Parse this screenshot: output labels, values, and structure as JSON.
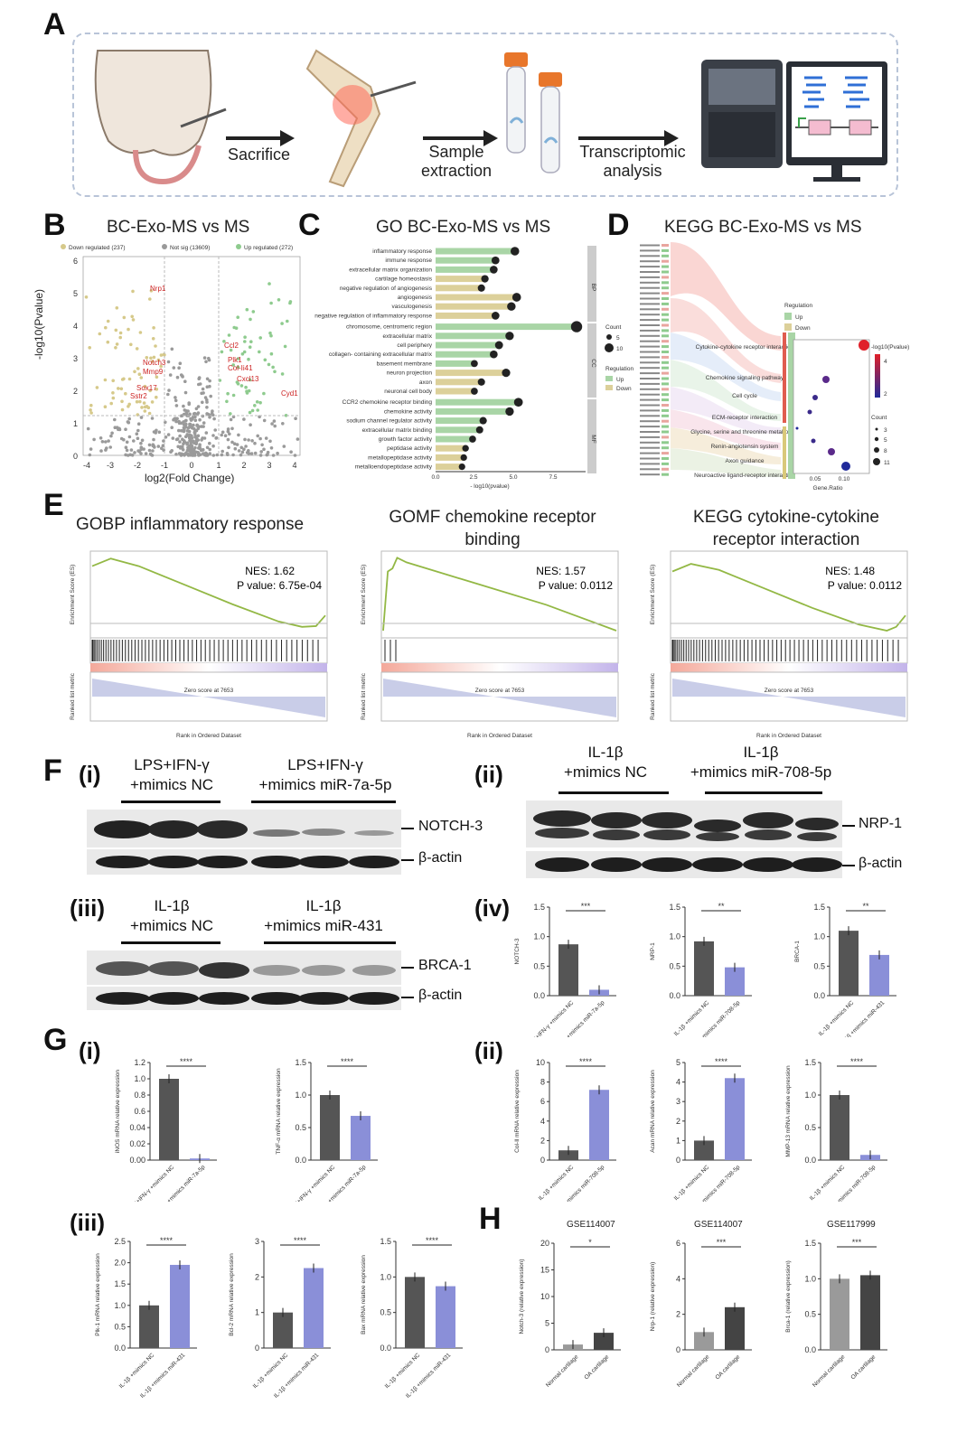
{
  "panels": {
    "A": "A",
    "B": "B",
    "C": "C",
    "D": "D",
    "E": "E",
    "F": "F",
    "G": "G",
    "H": "H"
  },
  "panelA": {
    "steps": [
      "Sacrifice",
      "Sample extraction",
      "Transcriptomic analysis"
    ],
    "colors": {
      "tube_cap": "#e8762b",
      "arrow": "#222222",
      "frame": "#b8c4d8"
    }
  },
  "panelB": {
    "title": "BC-Exo-MS vs MS",
    "legend": [
      "Down regulated (237)",
      "Not sig (13609)",
      "Up regulated (272)"
    ],
    "ylabel": "-log10(Pvalue)",
    "xlabel": "log2(Fold Change)",
    "genes_left": [
      "Nrp1",
      "Notch3",
      "Mmp9",
      "Sox17",
      "Sstr2"
    ],
    "genes_right": [
      "Ccl2",
      "Plk1",
      "Col-Ii41",
      "Cxcl13",
      "Cyd1"
    ],
    "colors": {
      "down": "#d6c98a",
      "ns": "#9a9a9a",
      "up": "#8ecb8e",
      "gene": "#cc2222"
    }
  },
  "panelC": {
    "title": "GO  BC-Exo-MS vs MS",
    "xlabel": "- log10(pvalue)",
    "terms": [
      "inflammatory response",
      "immune response",
      "extracellular matrix organization",
      "cartilage homeostasis",
      "negative regulation of angiogenesis",
      "angiogenesis",
      "vasculogenesis",
      "negative regulation of inflammatory response",
      "chromosome, centromeric region",
      "extracellular matrix",
      "cell periphery",
      "collagen- containing extracellular matrix",
      "basement membrane",
      "neuron projection",
      "axon",
      "neuronal cell body",
      "CCR2 chemokine receptor binding",
      "chemokine activity",
      "sodium channel regulator activity",
      "extracellular matrix binding",
      "growth factor activity",
      "peptidase activity",
      "metallopeptidase activity",
      "metalloendopeptidase activity"
    ],
    "groups": [
      "BP",
      "CC",
      "MF"
    ],
    "legend_count": "Count",
    "legend_reg": "Regulation",
    "reg_up": "Up",
    "reg_down": "Down",
    "count_ticks": [
      "5",
      "10"
    ]
  },
  "panelD": {
    "title": "KEGG  BC-Exo-MS vs MS",
    "pathways": [
      "Cytokine-cytokine receptor interaction",
      "Chemokine signaling pathway",
      "Cell cycle",
      "ECM-receptor interaction",
      "Glycine, serine and threonine metabolism",
      "Renin-angiotensin system",
      "Axon guidance",
      "Neuroactive ligand-receptor interaction"
    ],
    "legend_reg": "Regulation",
    "reg_up": "Up",
    "reg_down": "Down",
    "legend_p": "-log10(Pvalue)",
    "legend_count": "Count",
    "xlabel": "Gene.Ratio",
    "count_ticks": [
      "3",
      "5",
      "8",
      "11"
    ]
  },
  "panelE": {
    "plots": [
      {
        "title": "GOBP inflammatory response",
        "nes": "NES: 1.62",
        "p": "P value: 6.75e-04"
      },
      {
        "title": "GOMF chemokine receptor binding",
        "nes": "NES: 1.57",
        "p": "P value: 0.0112"
      },
      {
        "title": "KEGG cytokine-cytokine receptor interaction",
        "nes": "NES: 1.48",
        "p": "P value: 0.0112"
      }
    ],
    "ylabel": "Enrichment Score (ES)",
    "ylabel2": "Ranked list metric",
    "xlabel": "Rank in Ordered Dataset",
    "zero": "Zero score at 7653"
  },
  "panelF": {
    "i": {
      "tag": "(i)",
      "cond1": "LPS+IFN-γ\n+mimics NC",
      "cond2": "LPS+IFN-γ\n+mimics miR-7a-5p",
      "band1": "NOTCH-3",
      "band2": "β-actin"
    },
    "ii": {
      "tag": "(ii)",
      "cond1": "IL-1β\n+mimics NC",
      "cond2": "IL-1β\n+mimics miR-708-5p",
      "band1": "NRP-1",
      "band2": "β-actin"
    },
    "iii": {
      "tag": "(iii)",
      "cond1": "IL-1β\n+mimics NC",
      "cond2": "IL-1β\n+mimics miR-431",
      "band1": "BRCA-1",
      "band2": "β-actin"
    },
    "iv": {
      "tag": "(iv)"
    }
  },
  "panelG": {
    "i": "(i)",
    "ii": "(ii)",
    "iii": "(iii)"
  },
  "panelH": {
    "titles": [
      "GSE114007",
      "GSE114007",
      "GSE117999"
    ]
  },
  "chart_data": [
    {
      "type": "bar",
      "id": "F-iv-notch3",
      "ylabel": "NOTCH-3",
      "categories": [
        "LPS+IFN-γ +mimics NC",
        "LPS+IFN-γ +mimics miR-7a-5p"
      ],
      "values": [
        0.87,
        0.1
      ],
      "ylim": [
        0,
        1.5
      ],
      "yticks": [
        "0.0",
        "0.5",
        "1.0",
        "1.5"
      ],
      "sig": "***"
    },
    {
      "type": "bar",
      "id": "F-iv-nrp1",
      "ylabel": "NRP-1",
      "categories": [
        "IL-1β +mimics NC",
        "IL-1β +mimics miR-708-5p"
      ],
      "values": [
        0.92,
        0.48
      ],
      "ylim": [
        0,
        1.5
      ],
      "yticks": [
        "0.0",
        "0.5",
        "1.0",
        "1.5"
      ],
      "sig": "**"
    },
    {
      "type": "bar",
      "id": "F-iv-brca1",
      "ylabel": "BRCA-1",
      "categories": [
        "IL-1β +mimics NC",
        "IL-1β +mimics miR-431"
      ],
      "values": [
        1.1,
        0.69
      ],
      "ylim": [
        0,
        1.5
      ],
      "yticks": [
        "0.0",
        "0.5",
        "1.0",
        "1.5"
      ],
      "sig": "**"
    },
    {
      "type": "bar",
      "id": "G-i-inos",
      "ylabel": "iNOS mRNA relative expression",
      "categories": [
        "LPS+IFN-γ +mimics NC",
        "LPS+IFN-γ +mimics miR-7a-5p"
      ],
      "values": [
        1.0,
        0.02
      ],
      "ylim": [
        0,
        1.2
      ],
      "yticks": [
        "0.00",
        "0.02",
        "0.04",
        "0.6",
        "0.8",
        "1.0",
        "1.2"
      ],
      "sig": "****"
    },
    {
      "type": "bar",
      "id": "G-i-tnfa",
      "ylabel": "TNF-α mRNA relative expression",
      "categories": [
        "LPS+IFN-γ +mimics NC",
        "LPS+IFN-γ +mimics miR-7a-5p"
      ],
      "values": [
        1.0,
        0.68
      ],
      "ylim": [
        0,
        1.5
      ],
      "yticks": [
        "0.0",
        "0.5",
        "1.0",
        "1.5"
      ],
      "sig": "****"
    },
    {
      "type": "bar",
      "id": "G-ii-col2",
      "ylabel": "Col-Ⅱ mRNA relative expression",
      "categories": [
        "IL-1β +mimics NC",
        "IL-1β +mimics miR-708-5p"
      ],
      "values": [
        1.0,
        7.2
      ],
      "ylim": [
        0,
        10
      ],
      "yticks": [
        "0",
        "2",
        "4",
        "6",
        "8",
        "10"
      ],
      "sig": "****"
    },
    {
      "type": "bar",
      "id": "G-ii-acan",
      "ylabel": "Acan mRNA relative expression",
      "categories": [
        "IL-1β +mimics NC",
        "IL-1β +mimics miR-708-5p"
      ],
      "values": [
        1.0,
        4.2
      ],
      "ylim": [
        0,
        5
      ],
      "yticks": [
        "0",
        "1",
        "2",
        "3",
        "4",
        "5"
      ],
      "sig": "****"
    },
    {
      "type": "bar",
      "id": "G-ii-mmp13",
      "ylabel": "MMP-13 mRNA relative expression",
      "categories": [
        "IL-1β +mimics NC",
        "IL-1β +mimics miR-708-5p"
      ],
      "values": [
        1.0,
        0.08
      ],
      "ylim": [
        0,
        1.5
      ],
      "yticks": [
        "0.0",
        "0.5",
        "1.0",
        "1.5"
      ],
      "sig": "****"
    },
    {
      "type": "bar",
      "id": "G-iii-plk1",
      "ylabel": "Plk-1 mRNA relative expression",
      "categories": [
        "IL-1β +mimics NC",
        "IL-1β +mimics miR-431"
      ],
      "values": [
        1.0,
        1.95
      ],
      "ylim": [
        0,
        2.5
      ],
      "yticks": [
        "0.0",
        "0.5",
        "1.0",
        "1.5",
        "2.0",
        "2.5"
      ],
      "sig": "****"
    },
    {
      "type": "bar",
      "id": "G-iii-bcl2",
      "ylabel": "Bcl-2 mRNA relative expression",
      "categories": [
        "IL-1β +mimics NC",
        "IL-1β +mimics miR-431"
      ],
      "values": [
        1.0,
        2.25
      ],
      "ylim": [
        0,
        3
      ],
      "yticks": [
        "0",
        "1",
        "2",
        "3"
      ],
      "sig": "****"
    },
    {
      "type": "bar",
      "id": "G-iii-bax",
      "ylabel": "Bax mRNA relative expression",
      "categories": [
        "IL-1β +mimics NC",
        "IL-1β +mimics miR-431"
      ],
      "values": [
        1.0,
        0.87
      ],
      "ylim": [
        0,
        1.5
      ],
      "yticks": [
        "0.0",
        "0.5",
        "1.0",
        "1.5"
      ],
      "sig": "****"
    },
    {
      "type": "bar",
      "id": "H-notch3",
      "ylabel": "Notch-3 (relative expression)",
      "categories": [
        "Normal cartilage",
        "OA cartilage"
      ],
      "values": [
        1.0,
        3.2
      ],
      "ylim": [
        0,
        20
      ],
      "yticks": [
        "0",
        "5",
        "10",
        "15",
        "20"
      ],
      "sig": "*"
    },
    {
      "type": "bar",
      "id": "H-nrp1",
      "ylabel": "Nrp-1 (relative expression)",
      "categories": [
        "Normal cartilage",
        "OA cartilage"
      ],
      "values": [
        1.0,
        2.4
      ],
      "ylim": [
        0,
        6
      ],
      "yticks": [
        "0",
        "2",
        "4",
        "6"
      ],
      "sig": "***"
    },
    {
      "type": "bar",
      "id": "H-brca1",
      "ylabel": "Brca-1 (relative expression)",
      "categories": [
        "Normal cartilage",
        "OA cartilage"
      ],
      "values": [
        1.0,
        1.05
      ],
      "ylim": [
        0,
        1.5
      ],
      "yticks": [
        "0.0",
        "0.5",
        "1.0",
        "1.5"
      ],
      "sig": "***"
    }
  ]
}
